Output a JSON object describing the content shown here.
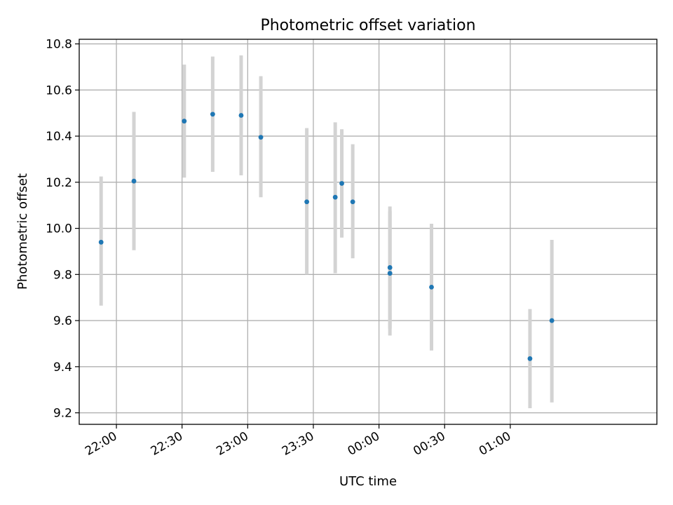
{
  "chart_data": {
    "type": "scatter",
    "title": "Photometric offset variation",
    "xlabel": "UTC time",
    "ylabel": "Photometric offset",
    "x_unit": "UTC time (HH:MM)",
    "xlim": [
      "21:43",
      "02:07"
    ],
    "ylim": [
      9.15,
      10.82
    ],
    "grid": true,
    "x_ticks": [
      "22:00",
      "22:30",
      "23:00",
      "23:30",
      "00:00",
      "00:30",
      "01:00"
    ],
    "y_ticks": [
      "9.2",
      "9.4",
      "9.6",
      "9.8",
      "10.0",
      "10.2",
      "10.4",
      "10.6",
      "10.8"
    ],
    "point_color": "#1f77b4",
    "errorbar_color": "#d3d3d3",
    "points": [
      {
        "x": "21:53",
        "y": 9.94,
        "ylow": 9.665,
        "yhigh": 10.225
      },
      {
        "x": "22:08",
        "y": 10.205,
        "ylow": 9.905,
        "yhigh": 10.505
      },
      {
        "x": "22:31",
        "y": 10.465,
        "ylow": 10.22,
        "yhigh": 10.71
      },
      {
        "x": "22:44",
        "y": 10.495,
        "ylow": 10.245,
        "yhigh": 10.745
      },
      {
        "x": "22:57",
        "y": 10.49,
        "ylow": 10.23,
        "yhigh": 10.75
      },
      {
        "x": "23:06",
        "y": 10.395,
        "ylow": 10.135,
        "yhigh": 10.66
      },
      {
        "x": "23:27",
        "y": 10.115,
        "ylow": 9.8,
        "yhigh": 10.435
      },
      {
        "x": "23:40",
        "y": 10.135,
        "ylow": 9.805,
        "yhigh": 10.46
      },
      {
        "x": "23:43",
        "y": 10.195,
        "ylow": 9.96,
        "yhigh": 10.43
      },
      {
        "x": "23:48",
        "y": 10.115,
        "ylow": 9.87,
        "yhigh": 10.365
      },
      {
        "x": "00:05",
        "y": 9.805,
        "ylow": 9.535,
        "yhigh": 10.075
      },
      {
        "x": "00:05",
        "y": 9.83,
        "ylow": 9.565,
        "yhigh": 10.095
      },
      {
        "x": "00:24",
        "y": 9.745,
        "ylow": 9.47,
        "yhigh": 10.02
      },
      {
        "x": "01:09",
        "y": 9.435,
        "ylow": 9.22,
        "yhigh": 9.65
      },
      {
        "x": "01:19",
        "y": 9.6,
        "ylow": 9.245,
        "yhigh": 9.95
      }
    ]
  }
}
